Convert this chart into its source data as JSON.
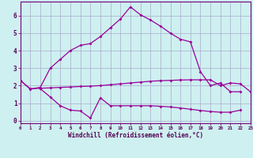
{
  "xlabel": "Windchill (Refroidissement éolien,°C)",
  "bg_color": "#cef0f0",
  "line_color": "#990099",
  "grid_color": "#aaaacc",
  "axis_color": "#770077",
  "text_color": "#550055",
  "xlim": [
    0,
    23
  ],
  "ylim": [
    -0.15,
    6.8
  ],
  "ytick_vals": [
    0,
    1,
    2,
    3,
    4,
    5,
    6
  ],
  "line1_x": [
    0,
    1,
    2,
    3,
    4,
    5,
    6,
    7,
    8,
    9,
    10,
    11,
    12,
    13,
    14,
    15,
    16,
    17,
    18,
    19,
    20,
    21,
    22
  ],
  "line1_y": [
    2.3,
    1.8,
    1.9,
    3.0,
    3.5,
    4.0,
    4.3,
    4.4,
    4.8,
    5.3,
    5.8,
    6.5,
    6.05,
    5.75,
    5.4,
    5.0,
    4.65,
    4.5,
    2.8,
    2.0,
    2.15,
    1.65,
    1.65
  ],
  "line2_x": [
    0,
    1,
    2,
    3,
    4,
    5,
    6,
    7,
    8,
    9,
    10,
    11,
    12,
    13,
    14,
    15,
    16,
    17,
    18,
    19,
    20,
    21,
    22,
    23
  ],
  "line2_y": [
    2.3,
    1.82,
    1.85,
    1.87,
    1.9,
    1.92,
    1.95,
    1.97,
    2.0,
    2.05,
    2.1,
    2.15,
    2.2,
    2.25,
    2.28,
    2.3,
    2.32,
    2.33,
    2.33,
    2.33,
    2.0,
    2.15,
    2.1,
    1.65
  ],
  "line3_x": [
    2,
    3,
    4,
    5,
    6,
    7,
    8,
    9,
    10,
    11,
    12,
    13,
    14,
    15,
    16,
    17,
    18,
    19,
    20,
    21,
    22
  ],
  "line3_y": [
    1.82,
    1.35,
    0.85,
    0.6,
    0.55,
    0.15,
    1.3,
    0.85,
    0.85,
    0.85,
    0.85,
    0.85,
    0.82,
    0.78,
    0.72,
    0.65,
    0.58,
    0.52,
    0.48,
    0.48,
    0.6
  ]
}
